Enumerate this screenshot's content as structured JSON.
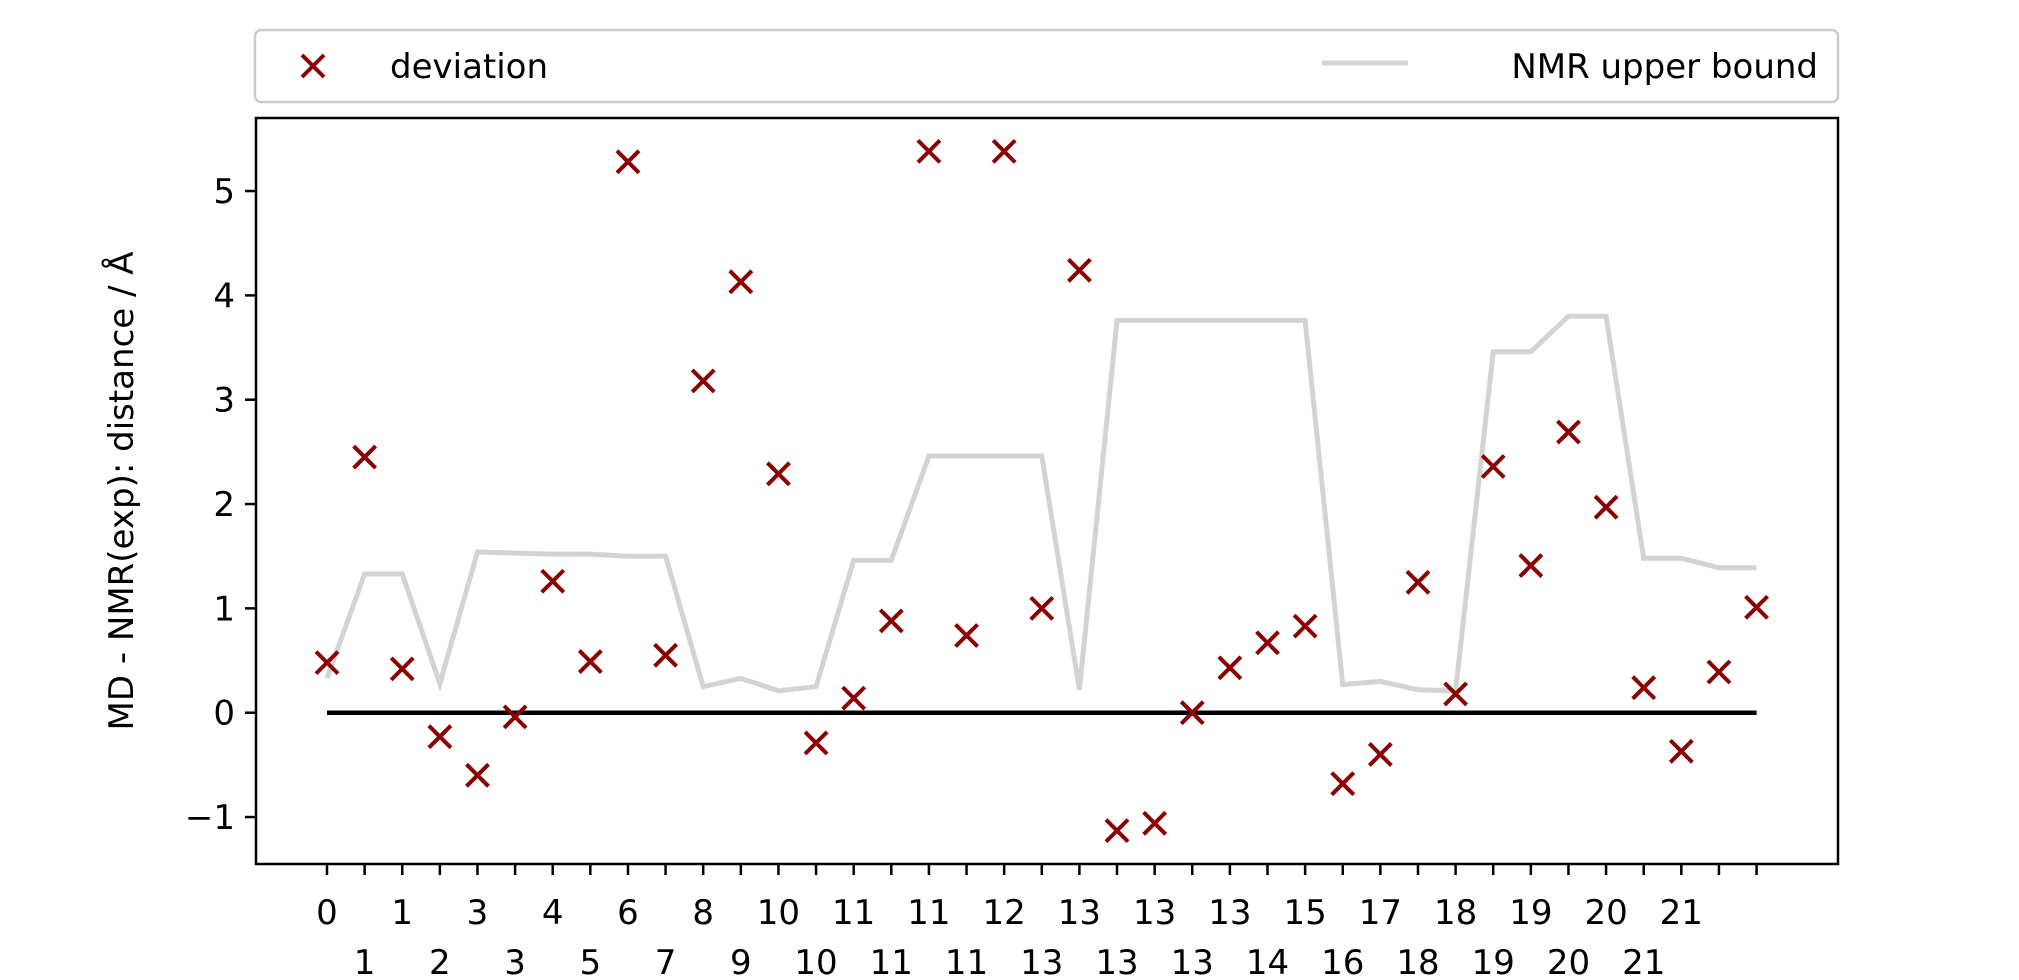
{
  "chart_data": {
    "type": "scatter",
    "title": "",
    "xlabel": "",
    "ylabel": "MD - NMR(exp): distance / Å",
    "ylim": [
      -1.45,
      5.7
    ],
    "yticks": [
      -1,
      0,
      1,
      2,
      3,
      4,
      5
    ],
    "ytick_labels": [
      "−1",
      "0",
      "1",
      "2",
      "3",
      "4",
      "5"
    ],
    "grid": false,
    "legend": {
      "placement": "top",
      "entries": [
        "deviation",
        "NMR upper bound"
      ]
    },
    "colors": {
      "deviation": "#8b0000",
      "upper_bound": "#d3d3d3",
      "zero_line": "#000000"
    },
    "x_tick_labels": [
      [
        "0",
        "1"
      ],
      [
        "1",
        "2"
      ],
      [
        "3",
        "3"
      ],
      [
        "4",
        "5"
      ],
      [
        "6",
        "7"
      ],
      [
        "8",
        "9"
      ],
      [
        "10",
        "10"
      ],
      [
        "11",
        "11"
      ],
      [
        "11",
        "11"
      ],
      [
        "12",
        "13"
      ],
      [
        "13",
        "13"
      ],
      [
        "13",
        "13"
      ],
      [
        "13",
        "14"
      ],
      [
        "15",
        "16"
      ],
      [
        "17",
        "18"
      ],
      [
        "18",
        "19"
      ],
      [
        "19",
        "20"
      ],
      [
        "20",
        "21"
      ],
      [
        "21",
        ""
      ]
    ],
    "series": [
      {
        "name": "deviation",
        "type": "scatter",
        "values": [
          0.48,
          2.45,
          0.42,
          -0.23,
          -0.6,
          -0.04,
          1.26,
          0.49,
          5.28,
          0.55,
          3.18,
          4.13,
          2.29,
          -0.29,
          0.14,
          0.88,
          5.38,
          0.74,
          5.38,
          1.0,
          4.24,
          -1.13,
          -1.06,
          0.0,
          0.43,
          0.67,
          0.83,
          -0.68,
          -0.4,
          1.25,
          0.18,
          2.36,
          1.41,
          2.69,
          1.97,
          0.24,
          -0.37,
          0.39,
          1.01
        ]
      },
      {
        "name": "NMR upper bound",
        "type": "line",
        "values": [
          0.33,
          1.33,
          1.33,
          0.28,
          1.54,
          1.53,
          1.52,
          1.52,
          1.5,
          1.5,
          0.25,
          0.33,
          0.21,
          0.25,
          1.46,
          1.46,
          2.46,
          2.46,
          2.46,
          2.46,
          0.22,
          3.76,
          3.76,
          3.76,
          3.76,
          3.76,
          3.76,
          0.27,
          0.3,
          0.22,
          0.21,
          3.46,
          3.46,
          3.8,
          3.8,
          1.48,
          1.48,
          1.39,
          1.39
        ]
      },
      {
        "name": "zero",
        "type": "line",
        "values": [
          0,
          0
        ]
      }
    ]
  }
}
